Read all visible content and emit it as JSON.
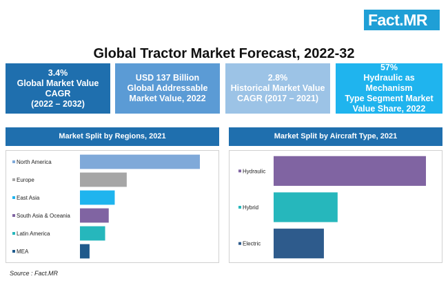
{
  "brand": {
    "logo_text": "Fact",
    "logo_dot": ".",
    "logo_suffix": "MR"
  },
  "title": "Global Tractor Market Forecast, 2022-32",
  "stats": [
    {
      "lines": [
        "3.4%",
        "Global Market Value",
        "CAGR",
        "(2022 – 2032)"
      ],
      "color": "#1f6fae"
    },
    {
      "lines": [
        "USD 137 Billion",
        "Global Addressable",
        "Market Value, 2022"
      ],
      "color": "#5b9bd5"
    },
    {
      "lines": [
        "2.8%",
        "Historical Market Value",
        "CAGR (2017 – 2021)"
      ],
      "color": "#9cc3e6"
    },
    {
      "lines": [
        "57%",
        "Hydraulic as Mechanism",
        "Type Segment Market",
        "Value Share, 2022"
      ],
      "color": "#1fb4ee"
    }
  ],
  "source": "Source : Fact.MR",
  "chart_data": [
    {
      "type": "bar",
      "orientation": "horizontal",
      "title": "Market Split by Regions, 2021",
      "categories": [
        "North America",
        "Europe",
        "East Asia",
        "South Asia & Oceania",
        "Latin America",
        "MEA"
      ],
      "values": [
        100,
        39,
        29,
        24,
        21,
        8
      ],
      "colors": [
        "#7fa9d9",
        "#a6a6a6",
        "#1fb4ee",
        "#8064a2",
        "#26b7bc",
        "#1f5a8c"
      ],
      "legend_marker_colors": [
        "#7fa9d9",
        "#a6a6a6",
        "#1fb4ee",
        "#8064a2",
        "#26b7bc",
        "#1f5a8c"
      ],
      "xlim": [
        0,
        100
      ],
      "grid": false
    },
    {
      "type": "bar",
      "orientation": "horizontal",
      "title": "Market Split by Aircraft Type, 2021",
      "categories": [
        "Hydraulic",
        "Hybrid",
        "Electric"
      ],
      "values": [
        100,
        42,
        33
      ],
      "colors": [
        "#8064a2",
        "#26b7bc",
        "#2e5b8c"
      ],
      "xlim": [
        0,
        100
      ],
      "grid": false
    }
  ]
}
